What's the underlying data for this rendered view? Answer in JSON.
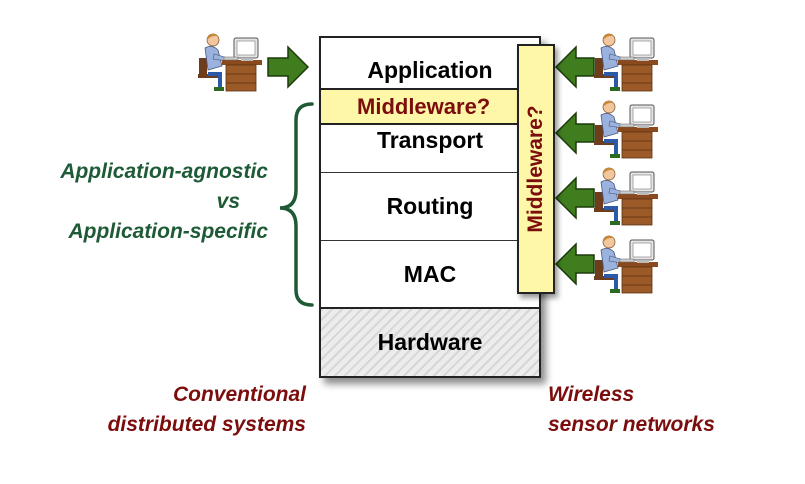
{
  "stack": {
    "layers": [
      {
        "label": "Application"
      },
      {
        "label": "Middleware?"
      },
      {
        "label": "Transport"
      },
      {
        "label": "Routing"
      },
      {
        "label": "MAC"
      },
      {
        "label": "Hardware"
      }
    ],
    "vertical_bar_label": "Middleware?"
  },
  "left_label": {
    "line1": "Application-agnostic",
    "line2": "vs",
    "line3": "Application-specific"
  },
  "captions": {
    "left_line1": "Conventional",
    "left_line2": "distributed systems",
    "right_line1": "Wireless",
    "right_line2": "sensor networks"
  },
  "colors": {
    "arrow_green": "#3f7d1f",
    "brace_green": "#1e5a36",
    "dark_red": "#7b0d0d",
    "middleware_fill": "#fff7a8"
  },
  "icons": {
    "user": "person-at-computer-icon",
    "arrow": "right-arrow-icon",
    "arrow_left": "left-arrow-icon",
    "brace": "curly-brace-icon"
  }
}
